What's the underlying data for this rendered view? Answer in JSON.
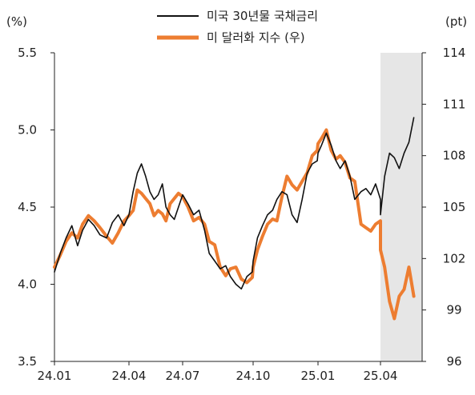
{
  "chart_data": {
    "type": "line",
    "left_unit": "(%)",
    "right_unit": "(pt)",
    "left_axis": {
      "ylim": [
        3.5,
        5.5
      ],
      "ticks": [
        "3.5",
        "4.0",
        "4.5",
        "5.0",
        "5.5"
      ]
    },
    "right_axis": {
      "ylim": [
        96,
        114
      ],
      "ticks": [
        "96",
        "99",
        "102",
        "105",
        "108",
        "111",
        "114"
      ]
    },
    "x_ticks": [
      "24.01",
      "24.04",
      "24.07",
      "24.10",
      "25.01",
      "25.04"
    ],
    "shaded_region": {
      "from": "25.04",
      "to": "end",
      "color": "#e6e6e6"
    },
    "series": [
      {
        "name": "미국 30년물 국채금리",
        "axis": "left",
        "color": "#111111",
        "points": [
          [
            "24.01",
            4.08
          ],
          [
            "24.01.08",
            4.2
          ],
          [
            "24.01.15",
            4.3
          ],
          [
            "24.01.22",
            4.38
          ],
          [
            "24.01.29",
            4.25
          ],
          [
            "24.02.05",
            4.35
          ],
          [
            "24.02.12",
            4.42
          ],
          [
            "24.02.19",
            4.38
          ],
          [
            "24.02.26",
            4.32
          ],
          [
            "24.03.04",
            4.3
          ],
          [
            "24.03.11",
            4.4
          ],
          [
            "24.03.18",
            4.45
          ],
          [
            "24.03.25",
            4.38
          ],
          [
            "24.04",
            4.45
          ],
          [
            "24.04.08",
            4.6
          ],
          [
            "24.04.15",
            4.72
          ],
          [
            "24.04.22",
            4.78
          ],
          [
            "24.04.29",
            4.7
          ],
          [
            "24.05.06",
            4.6
          ],
          [
            "24.05.13",
            4.55
          ],
          [
            "24.05.20",
            4.58
          ],
          [
            "24.05.27",
            4.65
          ],
          [
            "24.06.03",
            4.5
          ],
          [
            "24.06.10",
            4.45
          ],
          [
            "24.06.17",
            4.42
          ],
          [
            "24.06.24",
            4.5
          ],
          [
            "24.07",
            4.58
          ],
          [
            "24.07.08",
            4.52
          ],
          [
            "24.07.15",
            4.45
          ],
          [
            "24.07.22",
            4.48
          ],
          [
            "24.07.29",
            4.35
          ],
          [
            "24.08.05",
            4.2
          ],
          [
            "24.08.12",
            4.15
          ],
          [
            "24.08.19",
            4.1
          ],
          [
            "24.08.26",
            4.12
          ],
          [
            "24.09.02",
            4.05
          ],
          [
            "24.09.09",
            4.0
          ],
          [
            "24.09.16",
            3.97
          ],
          [
            "24.09.23",
            4.05
          ],
          [
            "24.09.30",
            4.08
          ],
          [
            "24.10",
            4.15
          ],
          [
            "24.10.07",
            4.3
          ],
          [
            "24.10.14",
            4.38
          ],
          [
            "24.10.21",
            4.45
          ],
          [
            "24.10.28",
            4.48
          ],
          [
            "24.11.04",
            4.55
          ],
          [
            "24.11.11",
            4.6
          ],
          [
            "24.11.18",
            4.58
          ],
          [
            "24.11.25",
            4.45
          ],
          [
            "24.12.02",
            4.4
          ],
          [
            "24.12.09",
            4.55
          ],
          [
            "24.12.16",
            4.72
          ],
          [
            "24.12.23",
            4.78
          ],
          [
            "24.12.30",
            4.8
          ],
          [
            "25.01",
            4.85
          ],
          [
            "25.01.06",
            4.9
          ],
          [
            "25.01.13",
            4.98
          ],
          [
            "25.01.20",
            4.9
          ],
          [
            "25.01.27",
            4.8
          ],
          [
            "25.02.03",
            4.75
          ],
          [
            "25.02.10",
            4.8
          ],
          [
            "25.02.17",
            4.7
          ],
          [
            "25.02.24",
            4.55
          ],
          [
            "25.03.03",
            4.6
          ],
          [
            "25.03.10",
            4.62
          ],
          [
            "25.03.17",
            4.58
          ],
          [
            "25.03.24",
            4.65
          ],
          [
            "25.03.31",
            4.55
          ],
          [
            "25.04",
            4.45
          ],
          [
            "25.04.07",
            4.7
          ],
          [
            "25.04.14",
            4.85
          ],
          [
            "25.04.21",
            4.82
          ],
          [
            "25.04.28",
            4.75
          ],
          [
            "25.05.05",
            4.85
          ],
          [
            "25.05.12",
            4.92
          ],
          [
            "25.05.19",
            5.08
          ]
        ]
      },
      {
        "name": "미 달러화 지수 (우)",
        "axis": "right",
        "color": "#ed7d31",
        "points": [
          [
            "24.01",
            101.5
          ],
          [
            "24.01.08",
            102.2
          ],
          [
            "24.01.15",
            103.0
          ],
          [
            "24.01.22",
            103.5
          ],
          [
            "24.01.29",
            103.2
          ],
          [
            "24.02.05",
            104.0
          ],
          [
            "24.02.12",
            104.5
          ],
          [
            "24.02.19",
            104.2
          ],
          [
            "24.02.26",
            103.8
          ],
          [
            "24.03.04",
            103.3
          ],
          [
            "24.03.11",
            102.9
          ],
          [
            "24.03.18",
            103.5
          ],
          [
            "24.03.25",
            104.2
          ],
          [
            "24.04",
            104.5
          ],
          [
            "24.04.08",
            104.8
          ],
          [
            "24.04.15",
            106.0
          ],
          [
            "24.04.22",
            105.8
          ],
          [
            "24.04.29",
            105.5
          ],
          [
            "24.05.06",
            105.2
          ],
          [
            "24.05.13",
            104.5
          ],
          [
            "24.05.20",
            104.8
          ],
          [
            "24.05.27",
            104.6
          ],
          [
            "24.06.03",
            104.2
          ],
          [
            "24.06.10",
            105.2
          ],
          [
            "24.06.17",
            105.5
          ],
          [
            "24.06.24",
            105.8
          ],
          [
            "24.07",
            105.6
          ],
          [
            "24.07.08",
            105.0
          ],
          [
            "24.07.15",
            104.2
          ],
          [
            "24.07.22",
            104.4
          ],
          [
            "24.07.29",
            104.0
          ],
          [
            "24.08.05",
            103.0
          ],
          [
            "24.08.12",
            102.8
          ],
          [
            "24.08.19",
            101.5
          ],
          [
            "24.08.26",
            101.0
          ],
          [
            "24.09.02",
            101.4
          ],
          [
            "24.09.09",
            101.5
          ],
          [
            "24.09.16",
            100.8
          ],
          [
            "24.09.23",
            100.6
          ],
          [
            "24.09.30",
            100.9
          ],
          [
            "24.10",
            101.5
          ],
          [
            "24.10.07",
            102.5
          ],
          [
            "24.10.14",
            103.3
          ],
          [
            "24.10.21",
            104.0
          ],
          [
            "24.10.28",
            104.3
          ],
          [
            "24.11.04",
            104.2
          ],
          [
            "24.11.11",
            105.6
          ],
          [
            "24.11.18",
            106.8
          ],
          [
            "24.11.25",
            106.3
          ],
          [
            "24.12.02",
            106.0
          ],
          [
            "24.12.09",
            106.5
          ],
          [
            "24.12.16",
            107.0
          ],
          [
            "24.12.23",
            108.0
          ],
          [
            "24.12.30",
            108.3
          ],
          [
            "25.01",
            108.7
          ],
          [
            "25.01.06",
            109.0
          ],
          [
            "25.01.13",
            109.5
          ],
          [
            "25.01.20",
            108.3
          ],
          [
            "25.01.27",
            107.8
          ],
          [
            "25.02.03",
            108.0
          ],
          [
            "25.02.10",
            107.6
          ],
          [
            "25.02.17",
            106.7
          ],
          [
            "25.02.24",
            106.5
          ],
          [
            "25.03.03",
            104.0
          ],
          [
            "25.03.10",
            103.8
          ],
          [
            "25.03.17",
            103.6
          ],
          [
            "25.03.24",
            104.0
          ],
          [
            "25.03.31",
            104.2
          ],
          [
            "25.04",
            102.5
          ],
          [
            "25.04.07",
            101.5
          ],
          [
            "25.04.14",
            99.5
          ],
          [
            "25.04.21",
            98.5
          ],
          [
            "25.04.28",
            99.8
          ],
          [
            "25.05.05",
            100.2
          ],
          [
            "25.05.12",
            101.5
          ],
          [
            "25.05.19",
            99.8
          ]
        ]
      }
    ]
  }
}
